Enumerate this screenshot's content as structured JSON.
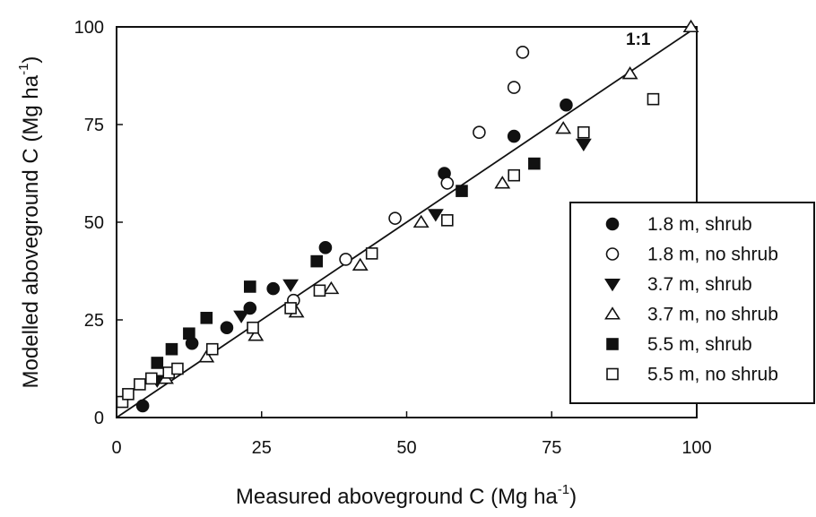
{
  "chart_data": {
    "type": "scatter",
    "xlabel": "Measured aboveground C (Mg ha",
    "xlabel_sup": "-1",
    "xlabel_end": ")",
    "ylabel": "Modelled aboveground C (Mg ha",
    "ylabel_sup": "-1",
    "ylabel_end": ")",
    "xlim": [
      0,
      100
    ],
    "ylim": [
      0,
      100
    ],
    "xticks": [
      0,
      25,
      50,
      75,
      100
    ],
    "yticks": [
      0,
      25,
      50,
      75,
      100
    ],
    "grid": false,
    "legend_position": "right",
    "annotation": "1:1",
    "reference_line": {
      "x": [
        0,
        100
      ],
      "y": [
        0,
        100
      ]
    },
    "series": [
      {
        "name": "1.8 m, shrub",
        "marker": "circle-filled",
        "points": [
          [
            4.5,
            3
          ],
          [
            13,
            19
          ],
          [
            19,
            23
          ],
          [
            23,
            28
          ],
          [
            27,
            33
          ],
          [
            36,
            43.5
          ],
          [
            56.5,
            62.5
          ],
          [
            68.5,
            72
          ],
          [
            77.5,
            80
          ]
        ]
      },
      {
        "name": "1.8 m, no shrub",
        "marker": "circle-open",
        "points": [
          [
            39.5,
            40.5
          ],
          [
            48,
            51
          ],
          [
            57,
            60
          ],
          [
            62.5,
            73
          ],
          [
            68.5,
            84.5
          ],
          [
            70,
            93.5
          ],
          [
            30.5,
            30
          ]
        ]
      },
      {
        "name": "3.7 m, shrub",
        "marker": "triangle-down-filled",
        "points": [
          [
            7,
            9.5
          ],
          [
            21.5,
            26
          ],
          [
            30,
            34
          ],
          [
            55,
            52
          ],
          [
            80.5,
            70
          ]
        ]
      },
      {
        "name": "3.7 m, no shrub",
        "marker": "triangle-up-open",
        "points": [
          [
            8.5,
            10
          ],
          [
            15.5,
            15.5
          ],
          [
            24,
            21
          ],
          [
            31,
            27
          ],
          [
            37,
            33
          ],
          [
            42,
            39
          ],
          [
            52.5,
            50
          ],
          [
            66.5,
            60
          ],
          [
            77,
            74
          ],
          [
            88.5,
            88
          ],
          [
            99,
            100
          ]
        ]
      },
      {
        "name": "5.5 m, shrub",
        "marker": "square-filled",
        "points": [
          [
            7,
            14
          ],
          [
            9.5,
            17.5
          ],
          [
            12.5,
            21.5
          ],
          [
            15.5,
            25.5
          ],
          [
            23,
            33.5
          ],
          [
            34.5,
            40
          ],
          [
            59.5,
            58
          ],
          [
            72,
            65
          ]
        ]
      },
      {
        "name": "5.5 m, no shrub",
        "marker": "square-open",
        "points": [
          [
            1,
            4
          ],
          [
            2,
            6
          ],
          [
            4,
            8.5
          ],
          [
            6,
            10
          ],
          [
            9,
            11.5
          ],
          [
            10.5,
            12.5
          ],
          [
            16.5,
            17.5
          ],
          [
            23.5,
            23
          ],
          [
            30,
            28
          ],
          [
            35,
            32.5
          ],
          [
            44,
            42
          ],
          [
            57,
            50.5
          ],
          [
            68.5,
            62
          ],
          [
            80.5,
            73
          ],
          [
            92.5,
            81.5
          ]
        ]
      }
    ]
  }
}
